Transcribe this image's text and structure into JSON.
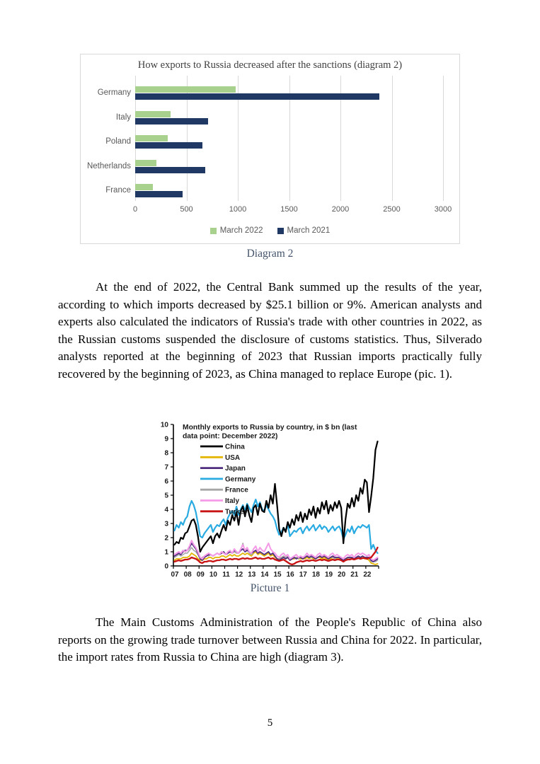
{
  "page": {
    "number": "5"
  },
  "captions": {
    "diagram2": "Diagram 2",
    "picture1": "Picture 1"
  },
  "paragraphs": {
    "p1": "At the end of 2022, the Central Bank summed up the results of the year, according to which imports decreased by $25.1 billion or 9%. American analysts and experts also calculated the indicators of Russia's trade with other countries in 2022, as the Russian customs suspended the disclosure of customs statistics. Thus, Silverado analysts reported at the beginning of 2023 that Russian imports practically fully recovered by the beginning of 2023, as China managed to replace Europe (pic. 1).",
    "p2": "The Main Customs Administration of the People's Republic of China also reports on the growing trade turnover between Russia and China for 2022. In particular, the import rates from Russia to China are high (diagram 3)."
  },
  "chart_data": [
    {
      "type": "bar",
      "orientation": "horizontal",
      "title": "How exports to Russia decreased after the sanctions (diagram 2)",
      "categories": [
        "Germany",
        "Italy",
        "Poland",
        "Netherlands",
        "France"
      ],
      "series": [
        {
          "name": "March 2022",
          "color": "#a9d18e",
          "values": [
            980,
            345,
            320,
            210,
            175
          ]
        },
        {
          "name": "March 2021",
          "color": "#1f3864",
          "values": [
            2380,
            710,
            655,
            680,
            460
          ]
        }
      ],
      "xlim": [
        0,
        3000
      ],
      "xticks": [
        0,
        500,
        1000,
        1500,
        2000,
        2500,
        3000
      ],
      "grid": true,
      "legend_position": "bottom",
      "grid_color": "#d9d9d9",
      "tick_color": "#595959"
    },
    {
      "type": "line",
      "title": "Monthly exports to Russia by country, in $ bn (last data point: December 2022)",
      "title_lines": [
        "Monthly exports to Russia by country, in $ bn (last",
        "data point: December 2022)"
      ],
      "x_start_year": 2007,
      "x_end_year": 2022,
      "points_per_year": 6,
      "xtick_labels": [
        "07",
        "08",
        "09",
        "10",
        "11",
        "12",
        "13",
        "14",
        "15",
        "16",
        "17",
        "18",
        "19",
        "20",
        "21",
        "22"
      ],
      "ylim": [
        0,
        10
      ],
      "yticks": [
        0,
        1,
        2,
        3,
        4,
        5,
        6,
        7,
        8,
        9,
        10
      ],
      "grid": false,
      "legend_position": "upper-left",
      "series": [
        {
          "name": "China",
          "color": "#000000",
          "width": 2.2,
          "values": [
            1.5,
            1.7,
            1.6,
            2.0,
            1.9,
            2.3,
            2.4,
            2.8,
            3.2,
            3.3,
            2.9,
            2.1,
            1.0,
            1.3,
            1.5,
            1.7,
            1.9,
            2.1,
            1.6,
            2.1,
            2.3,
            2.0,
            2.5,
            2.9,
            2.5,
            3.2,
            2.9,
            3.6,
            3.2,
            3.8,
            2.9,
            3.9,
            4.2,
            3.5,
            4.3,
            3.6,
            3.1,
            4.1,
            4.3,
            3.6,
            4.4,
            3.9,
            3.8,
            4.6,
            4.1,
            5.0,
            4.4,
            5.8,
            4.3,
            2.6,
            2.1,
            2.7,
            2.4,
            3.1,
            2.7,
            3.3,
            2.9,
            3.6,
            3.2,
            3.8,
            3.1,
            3.7,
            3.3,
            4.0,
            3.6,
            4.2,
            3.4,
            4.1,
            3.7,
            4.5,
            4.0,
            4.6,
            3.7,
            4.3,
            3.9,
            4.5,
            4.1,
            4.6,
            4.1,
            1.6,
            3.3,
            4.4,
            4.1,
            4.8,
            4.2,
            5.0,
            4.6,
            5.5,
            5.1,
            6.1,
            5.9,
            3.8,
            4.9,
            6.2,
            8.2,
            8.8
          ]
        },
        {
          "name": "USA",
          "color": "#e3b505",
          "width": 1.8,
          "values": [
            0.4,
            0.5,
            0.5,
            0.5,
            0.6,
            0.6,
            0.6,
            0.7,
            0.9,
            0.8,
            0.7,
            0.5,
            0.4,
            0.4,
            0.5,
            0.5,
            0.6,
            0.6,
            0.5,
            0.6,
            0.6,
            0.6,
            0.7,
            0.7,
            0.6,
            0.7,
            0.8,
            0.7,
            0.8,
            0.7,
            0.7,
            0.8,
            0.9,
            0.8,
            0.9,
            0.8,
            0.7,
            0.9,
            1.0,
            0.8,
            0.9,
            0.8,
            0.7,
            0.8,
            0.9,
            0.7,
            0.8,
            0.6,
            0.5,
            0.5,
            0.6,
            0.6,
            0.5,
            0.6,
            0.4,
            0.5,
            0.5,
            0.6,
            0.5,
            0.5,
            0.5,
            0.5,
            0.6,
            0.5,
            0.6,
            0.5,
            0.5,
            0.6,
            0.6,
            0.5,
            0.6,
            0.5,
            0.4,
            0.5,
            0.6,
            0.5,
            0.5,
            0.5,
            0.4,
            0.4,
            0.5,
            0.5,
            0.5,
            0.5,
            0.5,
            0.5,
            0.6,
            0.5,
            0.6,
            0.5,
            0.5,
            0.4,
            0.2,
            0.15,
            0.1,
            0.15
          ]
        },
        {
          "name": "Japan",
          "color": "#4f2d7f",
          "width": 1.8,
          "values": [
            0.7,
            0.8,
            0.9,
            0.8,
            1.0,
            1.1,
            1.1,
            1.3,
            1.6,
            1.4,
            1.2,
            0.9,
            0.5,
            0.4,
            0.6,
            0.7,
            0.8,
            0.8,
            0.7,
            0.8,
            0.9,
            0.8,
            0.9,
            1.0,
            0.8,
            0.9,
            1.0,
            0.9,
            1.1,
            1.0,
            0.9,
            1.1,
            1.2,
            1.0,
            1.1,
            1.0,
            0.9,
            1.0,
            1.1,
            0.9,
            1.0,
            0.9,
            0.8,
            0.9,
            1.0,
            0.8,
            0.9,
            0.7,
            0.5,
            0.4,
            0.5,
            0.6,
            0.5,
            0.6,
            0.4,
            0.5,
            0.6,
            0.5,
            0.6,
            0.6,
            0.5,
            0.6,
            0.7,
            0.6,
            0.7,
            0.6,
            0.5,
            0.6,
            0.7,
            0.6,
            0.7,
            0.6,
            0.5,
            0.6,
            0.7,
            0.6,
            0.6,
            0.6,
            0.5,
            0.4,
            0.5,
            0.6,
            0.6,
            0.6,
            0.5,
            0.6,
            0.7,
            0.6,
            0.7,
            0.6,
            0.6,
            0.6,
            0.4,
            0.3,
            0.4,
            0.5
          ]
        },
        {
          "name": "Germany",
          "color": "#29abe2",
          "width": 2.2,
          "values": [
            2.5,
            2.9,
            2.7,
            3.1,
            2.9,
            3.3,
            3.5,
            4.2,
            4.6,
            4.3,
            3.8,
            3.0,
            2.1,
            2.0,
            2.3,
            2.5,
            2.7,
            2.9,
            2.4,
            2.7,
            2.9,
            2.8,
            3.1,
            3.3,
            2.9,
            3.4,
            3.7,
            3.9,
            3.6,
            4.2,
            3.6,
            4.0,
            4.3,
            3.9,
            4.4,
            4.1,
            3.8,
            4.3,
            4.7,
            4.2,
            4.5,
            4.0,
            3.9,
            4.3,
            4.0,
            3.7,
            3.5,
            3.2,
            2.6,
            2.2,
            2.4,
            2.7,
            2.5,
            2.9,
            2.1,
            2.3,
            2.5,
            2.4,
            2.6,
            2.7,
            2.3,
            2.6,
            2.8,
            2.5,
            2.7,
            2.9,
            2.5,
            2.7,
            2.9,
            2.6,
            2.8,
            2.7,
            2.4,
            2.6,
            2.8,
            2.5,
            2.7,
            2.8,
            2.5,
            1.9,
            2.2,
            2.6,
            2.4,
            2.8,
            2.3,
            2.6,
            2.8,
            2.7,
            2.9,
            2.8,
            2.7,
            2.9,
            1.2,
            1.5,
            1.1,
            0.9
          ]
        },
        {
          "name": "France",
          "color": "#a6a6a6",
          "width": 1.6,
          "values": [
            0.6,
            0.7,
            0.8,
            0.7,
            0.8,
            0.9,
            0.9,
            1.1,
            1.3,
            1.1,
            1.0,
            0.8,
            0.5,
            0.6,
            0.7,
            0.8,
            0.7,
            0.8,
            0.7,
            0.8,
            0.9,
            0.8,
            0.9,
            1.0,
            0.8,
            0.9,
            1.1,
            0.9,
            1.0,
            0.9,
            0.9,
            1.1,
            1.6,
            1.0,
            1.2,
            0.9,
            0.8,
            1.0,
            1.1,
            0.9,
            1.0,
            0.9,
            0.8,
            0.9,
            1.0,
            0.8,
            0.9,
            0.7,
            0.5,
            0.5,
            0.6,
            0.7,
            0.6,
            0.7,
            0.5,
            0.5,
            0.6,
            0.6,
            0.5,
            0.6,
            0.5,
            0.6,
            0.7,
            0.6,
            0.6,
            0.6,
            0.5,
            0.6,
            0.7,
            0.6,
            0.7,
            0.6,
            0.5,
            0.6,
            0.6,
            0.5,
            0.6,
            0.6,
            0.5,
            0.4,
            0.5,
            0.6,
            0.5,
            0.6,
            0.5,
            0.6,
            0.6,
            0.6,
            0.7,
            0.6,
            0.6,
            0.6,
            0.3,
            0.3,
            0.3,
            0.4
          ]
        },
        {
          "name": "Italy",
          "color": "#f49ae6",
          "width": 2.0,
          "values": [
            0.8,
            0.9,
            1.0,
            0.9,
            1.1,
            1.0,
            1.1,
            1.4,
            1.8,
            1.5,
            1.3,
            1.0,
            0.6,
            0.5,
            0.7,
            0.8,
            0.9,
            0.8,
            0.7,
            0.8,
            0.9,
            0.8,
            1.0,
            0.9,
            0.8,
            1.0,
            1.1,
            0.9,
            1.2,
            1.0,
            0.9,
            1.2,
            1.5,
            1.1,
            1.3,
            1.0,
            0.9,
            1.2,
            1.4,
            1.0,
            1.3,
            1.1,
            1.0,
            1.3,
            1.6,
            1.2,
            1.0,
            0.9,
            0.7,
            0.6,
            0.8,
            0.9,
            0.7,
            0.8,
            0.5,
            0.6,
            0.7,
            0.8,
            0.6,
            0.7,
            0.6,
            0.7,
            0.9,
            0.7,
            0.8,
            0.7,
            0.6,
            0.8,
            0.9,
            0.7,
            0.8,
            0.7,
            0.6,
            0.8,
            0.9,
            0.7,
            0.8,
            0.7,
            0.6,
            0.5,
            0.7,
            0.8,
            0.7,
            0.8,
            0.6,
            0.8,
            0.9,
            0.8,
            0.9,
            0.8,
            0.7,
            0.8,
            0.5,
            0.4,
            0.5,
            0.6
          ]
        },
        {
          "name": "Turkey",
          "color": "#c81414",
          "width": 2.3,
          "values": [
            0.3,
            0.35,
            0.4,
            0.35,
            0.4,
            0.45,
            0.45,
            0.5,
            0.6,
            0.55,
            0.5,
            0.4,
            0.25,
            0.2,
            0.3,
            0.3,
            0.35,
            0.35,
            0.3,
            0.35,
            0.4,
            0.4,
            0.45,
            0.45,
            0.4,
            0.45,
            0.5,
            0.45,
            0.5,
            0.5,
            0.45,
            0.5,
            0.55,
            0.5,
            0.55,
            0.5,
            0.5,
            0.55,
            0.6,
            0.5,
            0.55,
            0.5,
            0.5,
            0.55,
            0.6,
            0.5,
            0.55,
            0.45,
            0.4,
            0.35,
            0.4,
            0.45,
            0.35,
            0.25,
            0.15,
            0.1,
            0.15,
            0.25,
            0.3,
            0.35,
            0.3,
            0.35,
            0.4,
            0.35,
            0.4,
            0.4,
            0.35,
            0.4,
            0.45,
            0.4,
            0.45,
            0.4,
            0.35,
            0.4,
            0.45,
            0.4,
            0.45,
            0.45,
            0.4,
            0.3,
            0.4,
            0.45,
            0.45,
            0.5,
            0.45,
            0.5,
            0.55,
            0.5,
            0.55,
            0.55,
            0.5,
            0.55,
            0.6,
            0.8,
            1.0,
            1.3
          ]
        }
      ]
    }
  ]
}
